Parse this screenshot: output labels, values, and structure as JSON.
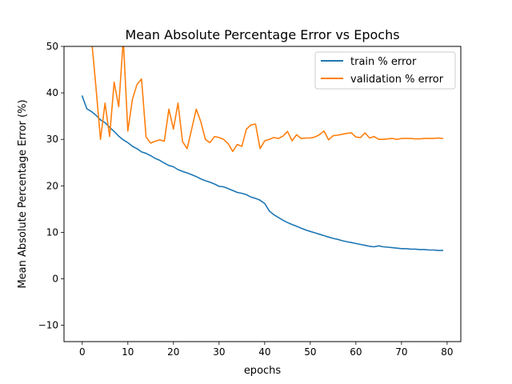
{
  "chart_data": {
    "type": "line",
    "title": "Mean Absolute Percentage Error vs Epochs",
    "xlabel": "epochs",
    "ylabel": "Mean Absolute Percentage Error (%)",
    "xlim": [
      -4,
      83
    ],
    "ylim": [
      -13.5,
      50
    ],
    "xticks": [
      0,
      10,
      20,
      30,
      40,
      50,
      60,
      70,
      80
    ],
    "yticks": [
      -10,
      0,
      10,
      20,
      30,
      40,
      50
    ],
    "grid": false,
    "legend_position": "top-right",
    "series": [
      {
        "name": "train % error",
        "color": "#1f77b4",
        "x": [
          0,
          1,
          2,
          3,
          4,
          5,
          6,
          7,
          8,
          9,
          10,
          11,
          12,
          13,
          14,
          15,
          16,
          17,
          18,
          19,
          20,
          21,
          22,
          23,
          24,
          25,
          26,
          27,
          28,
          29,
          30,
          31,
          32,
          33,
          34,
          35,
          36,
          37,
          38,
          39,
          40,
          41,
          42,
          43,
          44,
          45,
          46,
          47,
          48,
          49,
          50,
          51,
          52,
          53,
          54,
          55,
          56,
          57,
          58,
          59,
          60,
          61,
          62,
          63,
          64,
          65,
          66,
          67,
          68,
          69,
          70,
          71,
          72,
          73,
          74,
          75,
          76,
          77,
          78,
          79
        ],
        "y": [
          39.3,
          36.6,
          36.0,
          35.2,
          34.2,
          33.6,
          32.6,
          31.7,
          30.7,
          29.9,
          29.3,
          28.5,
          28.0,
          27.3,
          27.0,
          26.5,
          25.9,
          25.5,
          24.9,
          24.4,
          24.1,
          23.5,
          23.1,
          22.8,
          22.4,
          22.0,
          21.5,
          21.1,
          20.8,
          20.4,
          19.9,
          19.8,
          19.4,
          19.0,
          18.6,
          18.4,
          18.1,
          17.6,
          17.3,
          16.9,
          16.2,
          14.6,
          13.8,
          13.2,
          12.6,
          12.1,
          11.7,
          11.3,
          10.9,
          10.5,
          10.2,
          9.9,
          9.6,
          9.3,
          9.0,
          8.7,
          8.5,
          8.2,
          8.0,
          7.8,
          7.6,
          7.4,
          7.2,
          7.0,
          6.9,
          7.1,
          6.9,
          6.8,
          6.7,
          6.6,
          6.5,
          6.5,
          6.4,
          6.4,
          6.3,
          6.3,
          6.2,
          6.2,
          6.1,
          6.1
        ]
      },
      {
        "name": "validation % error",
        "color": "#ff7f0e",
        "x": [
          2,
          3,
          4,
          5,
          6,
          7,
          8,
          9,
          10,
          11,
          12,
          13,
          14,
          15,
          16,
          17,
          18,
          19,
          20,
          21,
          22,
          23,
          24,
          25,
          26,
          27,
          28,
          29,
          30,
          31,
          32,
          33,
          34,
          35,
          36,
          37,
          38,
          39,
          40,
          41,
          42,
          43,
          44,
          45,
          46,
          47,
          48,
          49,
          50,
          51,
          52,
          53,
          54,
          55,
          56,
          57,
          58,
          59,
          60,
          61,
          62,
          63,
          64,
          65,
          66,
          67,
          68,
          69,
          70,
          71,
          72,
          73,
          74,
          75,
          76,
          77,
          78,
          79
        ],
        "y": [
          52,
          41.3,
          30.0,
          37.8,
          30.6,
          42.3,
          37.0,
          51.5,
          31.8,
          38.6,
          41.8,
          43.0,
          30.5,
          29.2,
          29.6,
          29.9,
          29.6,
          36.5,
          32.2,
          37.8,
          29.5,
          28.0,
          32.2,
          36.5,
          33.8,
          30.0,
          29.3,
          30.6,
          30.4,
          30.0,
          29.1,
          27.4,
          28.9,
          28.5,
          32.2,
          33.1,
          33.3,
          28.0,
          29.7,
          30.0,
          30.4,
          30.2,
          30.7,
          31.7,
          29.7,
          31.0,
          30.2,
          30.3,
          30.3,
          30.5,
          31.0,
          31.8,
          29.9,
          30.8,
          30.9,
          31.1,
          31.3,
          31.4,
          30.5,
          30.4,
          31.4,
          30.3,
          30.6,
          30.0,
          30.0,
          30.1,
          30.2,
          30.0,
          30.2,
          30.2,
          30.2,
          30.1,
          30.1,
          30.2,
          30.2,
          30.2,
          30.3,
          30.2
        ]
      }
    ]
  }
}
